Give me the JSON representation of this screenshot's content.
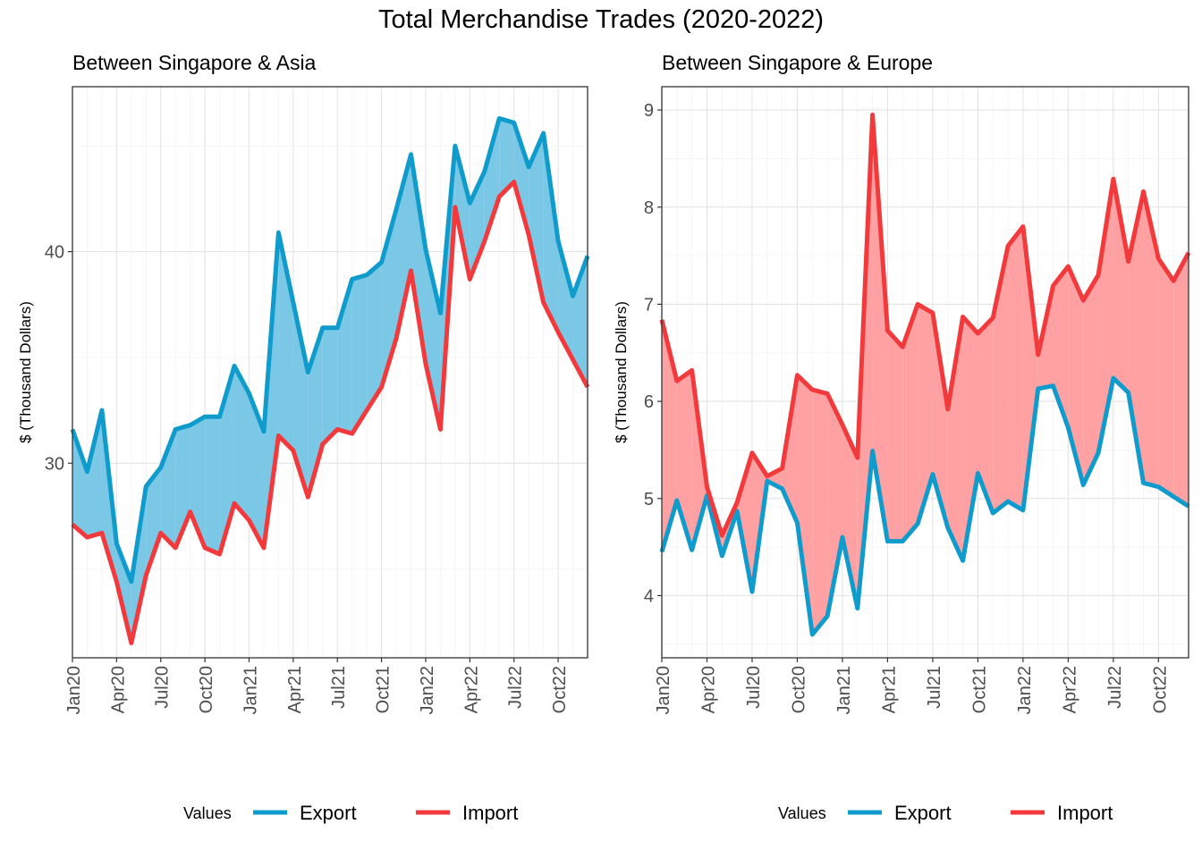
{
  "title": "Total Merchandise Trades (2020-2022)",
  "colors": {
    "export": "#0f9bcc",
    "import": "#f2393c",
    "export_fill": "#7ac8e6",
    "import_fill": "#ffa1a3"
  },
  "chart_data": [
    {
      "type": "line",
      "subtitle": "Between Singapore & Asia",
      "ylabel": "$ (Thousand Dollars)",
      "xlabel": "",
      "x": [
        "Jan20",
        "Feb20",
        "Mar20",
        "Apr20",
        "May20",
        "Jun20",
        "Jul20",
        "Aug20",
        "Sep20",
        "Oct20",
        "Nov20",
        "Dec20",
        "Jan21",
        "Feb21",
        "Mar21",
        "Apr21",
        "May21",
        "Jun21",
        "Jul21",
        "Aug21",
        "Sep21",
        "Oct21",
        "Nov21",
        "Dec21",
        "Jan22",
        "Feb22",
        "Mar22",
        "Apr22",
        "May22",
        "Jun22",
        "Jul22",
        "Aug22",
        "Sep22",
        "Oct22",
        "Nov22",
        "Dec22"
      ],
      "x_ticks": [
        "Jan20",
        "Apr20",
        "Jul20",
        "Oct20",
        "Jan21",
        "Apr21",
        "Jul21",
        "Oct21",
        "Jan22",
        "Apr22",
        "Jul22",
        "Oct22"
      ],
      "y_ticks": [
        30,
        40
      ],
      "ylim": [
        20.8,
        47.8
      ],
      "grid": true,
      "fill_between": true,
      "legend": {
        "title": "Values",
        "position": "bottom",
        "entries": [
          "Export",
          "Import"
        ]
      },
      "series": [
        {
          "name": "Export",
          "values": [
            31.6,
            29.6,
            32.5,
            26.2,
            24.4,
            28.9,
            29.8,
            31.6,
            31.8,
            32.2,
            32.2,
            34.6,
            33.3,
            31.5,
            40.9,
            37.6,
            34.3,
            36.4,
            36.4,
            38.7,
            38.9,
            39.5,
            42.0,
            44.6,
            40.1,
            37.1,
            45.0,
            42.3,
            43.8,
            46.3,
            46.1,
            44.0,
            45.6,
            40.5,
            37.9,
            39.8
          ]
        },
        {
          "name": "Import",
          "values": [
            27.1,
            26.5,
            26.7,
            24.4,
            21.5,
            24.7,
            26.7,
            26.0,
            27.7,
            26.0,
            25.7,
            28.1,
            27.3,
            26.0,
            31.3,
            30.6,
            28.4,
            30.9,
            31.6,
            31.4,
            32.5,
            33.6,
            35.9,
            39.1,
            34.7,
            31.6,
            42.1,
            38.7,
            40.5,
            42.6,
            43.3,
            40.8,
            37.6,
            36.2,
            34.9,
            33.6
          ]
        }
      ]
    },
    {
      "type": "line",
      "subtitle": "Between Singapore & Europe",
      "ylabel": "$ (Thousand Dollars)",
      "xlabel": "",
      "x": [
        "Jan20",
        "Feb20",
        "Mar20",
        "Apr20",
        "May20",
        "Jun20",
        "Jul20",
        "Aug20",
        "Sep20",
        "Oct20",
        "Nov20",
        "Dec20",
        "Jan21",
        "Feb21",
        "Mar21",
        "Apr21",
        "May21",
        "Jun21",
        "Jul21",
        "Aug21",
        "Sep21",
        "Oct21",
        "Nov21",
        "Dec21",
        "Jan22",
        "Feb22",
        "Mar22",
        "Apr22",
        "May22",
        "Jun22",
        "Jul22",
        "Aug22",
        "Sep22",
        "Oct22",
        "Nov22",
        "Dec22"
      ],
      "x_ticks": [
        "Jan20",
        "Apr20",
        "Jul20",
        "Oct20",
        "Jan21",
        "Apr21",
        "Jul21",
        "Oct21",
        "Jan22",
        "Apr22",
        "Jul22",
        "Oct22"
      ],
      "y_ticks": [
        4,
        5,
        6,
        7,
        8,
        9
      ],
      "ylim": [
        3.36,
        9.24
      ],
      "grid": true,
      "fill_between": true,
      "legend": {
        "title": "Values",
        "position": "bottom",
        "entries": [
          "Export",
          "Import"
        ]
      },
      "series": [
        {
          "name": "Export",
          "values": [
            4.45,
            4.98,
            4.47,
            5.03,
            4.41,
            4.87,
            4.04,
            5.18,
            5.1,
            4.75,
            3.6,
            3.79,
            4.6,
            3.87,
            5.49,
            4.56,
            4.56,
            4.74,
            5.25,
            4.7,
            4.36,
            5.26,
            4.85,
            4.97,
            4.88,
            6.13,
            6.16,
            5.73,
            5.14,
            5.47,
            6.24,
            6.09,
            5.16,
            5.12,
            5.02,
            4.92
          ]
        },
        {
          "name": "Import",
          "values": [
            6.84,
            6.21,
            6.32,
            5.12,
            4.62,
            4.96,
            5.47,
            5.23,
            5.31,
            6.27,
            6.12,
            6.08,
            5.76,
            5.42,
            8.95,
            6.73,
            6.56,
            7.0,
            6.91,
            5.92,
            6.87,
            6.7,
            6.86,
            7.6,
            7.8,
            6.48,
            7.19,
            7.39,
            7.04,
            7.3,
            8.29,
            7.44,
            8.16,
            7.47,
            7.24,
            7.53
          ]
        }
      ]
    }
  ]
}
